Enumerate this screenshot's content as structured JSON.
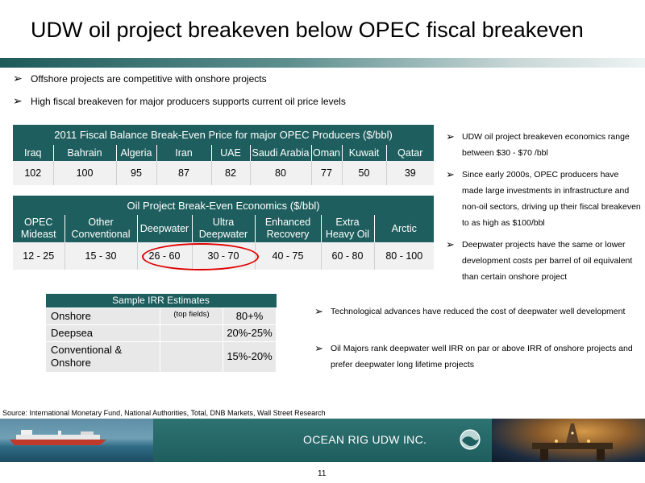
{
  "slide": {
    "title": "UDW oil project breakeven below OPEC fiscal breakeven",
    "bullets": [
      "Offshore projects are competitive with onshore projects",
      "High fiscal breakeven for major producers supports current oil price levels"
    ],
    "bullet_glyph": "➢"
  },
  "fiscal_table": {
    "caption": "2011  Fiscal Balance Break-Even Price for major OPEC Producers ($/bbl)",
    "headers": [
      "Iraq",
      "Bahrain",
      "Algeria",
      "Iran",
      "UAE",
      "Saudi Arabia",
      "Oman",
      "Kuwait",
      "Qatar"
    ],
    "values": [
      "102",
      "100",
      "95",
      "87",
      "82",
      "80",
      "77",
      "50",
      "39"
    ]
  },
  "oil_table": {
    "caption": "Oil Project Break-Even Economics ($/bbl)",
    "headers": [
      [
        "OPEC",
        "Mideast"
      ],
      [
        "Other",
        "Conventional"
      ],
      [
        "Deepwater"
      ],
      [
        "Ultra",
        "Deepwater"
      ],
      [
        "Enhanced",
        "Recovery"
      ],
      [
        "Extra",
        "Heavy Oil"
      ],
      [
        "Arctic"
      ]
    ],
    "values": [
      "12 - 25",
      "15 - 30",
      "26 - 60",
      "30 - 70",
      "40 - 75",
      "60 - 80",
      "80 - 100"
    ]
  },
  "irr_table": {
    "caption": "Sample IRR Estimates",
    "rows": [
      {
        "label": "Onshore",
        "note": "(top fields)",
        "value": "80+%"
      },
      {
        "label": "Deepsea",
        "note": "",
        "value": "20%-25%"
      },
      {
        "label": "Conventional & Onshore",
        "label_lines": [
          "Conventional &",
          "Onshore"
        ],
        "note": "",
        "value": "15%-20%"
      }
    ]
  },
  "right_bullets": [
    "UDW oil project breakeven economics range between $30 - $70 /bbl",
    "Since early 2000s, OPEC producers have made large investments in infrastructure and non-oil sectors, driving up their fiscal breakeven to as high as $100/bbl",
    "Deepwater projects have the same or lower development costs per barrel of oil equivalent than certain onshore project"
  ],
  "middle_bullets": [
    "Technological advances have reduced the cost of deepwater well development",
    "Oil Majors rank deepwater well IRR on par or above IRR of onshore projects and prefer deepwater long lifetime projects"
  ],
  "source": "Source: International Monetary Fund, National Authorities, Total,  DNB Markets, Wall Street Research",
  "footer": {
    "company": "OCEAN RIG UDW INC.",
    "logo_icon": "ocean-rig-logo-icon",
    "page_number": "11"
  },
  "colors": {
    "table_header_bg": "#1f5e5e",
    "table_body_bg": "#f1f1f1",
    "highlight": "#e00000"
  }
}
